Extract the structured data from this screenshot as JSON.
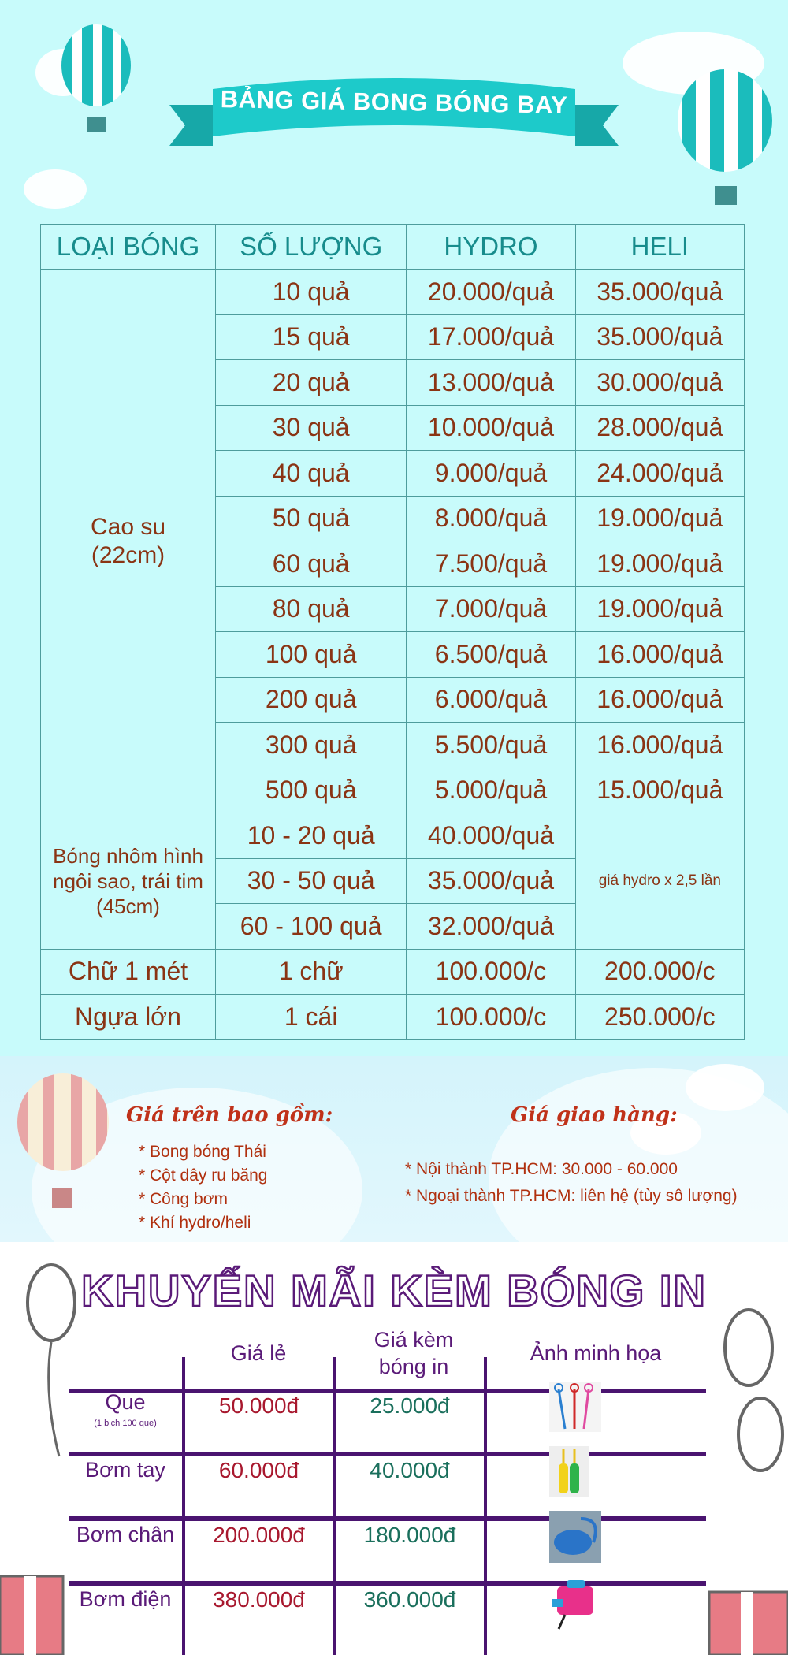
{
  "title": "BẢNG GIÁ BONG BÓNG BAY",
  "table": {
    "headers": [
      "LOẠI BÓNG",
      "SỐ LƯỢNG",
      "HYDRO",
      "HELI"
    ],
    "latex": {
      "type": "Cao su (22cm)",
      "rows": [
        [
          "10 quả",
          "20.000/quả",
          "35.000/quả"
        ],
        [
          "15 quả",
          "17.000/quả",
          "35.000/quả"
        ],
        [
          "20 quả",
          "13.000/quả",
          "30.000/quả"
        ],
        [
          "30 quả",
          "10.000/quả",
          "28.000/quả"
        ],
        [
          "40 quả",
          "9.000/quả",
          "24.000/quả"
        ],
        [
          "50 quả",
          "8.000/quả",
          "19.000/quả"
        ],
        [
          "60 quả",
          "7.500/quả",
          "19.000/quả"
        ],
        [
          "80 quả",
          "7.000/quả",
          "19.000/quả"
        ],
        [
          "100 quả",
          "6.500/quả",
          "16.000/quả"
        ],
        [
          "200 quả",
          "6.000/quả",
          "16.000/quả"
        ],
        [
          "300 quả",
          "5.500/quả",
          "16.000/quả"
        ],
        [
          "500 quả",
          "5.000/quả",
          "15.000/quả"
        ]
      ]
    },
    "foil": {
      "type": "Bóng nhôm hình ngôi sao, trái tim (45cm)",
      "heli": "giá hydro x 2,5 lần",
      "rows": [
        [
          "10 - 20 quả",
          "40.000/quả"
        ],
        [
          "30 - 50 quả",
          "35.000/quả"
        ],
        [
          "60 - 100 quả",
          "32.000/quả"
        ]
      ]
    },
    "others": [
      [
        "Chữ 1 mét",
        "1 chữ",
        "100.000/c",
        "200.000/c"
      ],
      [
        "Ngựa lớn",
        "1 cái",
        "100.000/c",
        "250.000/c"
      ]
    ]
  },
  "includes": {
    "heading": "Giá trên bao gồm:",
    "items": [
      "* Bong bóng Thái",
      "* Cột dây ru băng",
      "* Công bơm",
      "* Khí hydro/heli"
    ]
  },
  "delivery": {
    "heading": "Giá giao hàng:",
    "items": [
      "* Nội thành TP.HCM: 30.000 - 60.000",
      "* Ngoại thành TP.HCM: liên hệ (tùy sô lượng)"
    ]
  },
  "promo": {
    "title": "KHUYẾN MÃI KÈM BÓNG IN",
    "headers": [
      "Giá lẻ",
      "Giá kèm bóng in",
      "Ảnh minh họa"
    ],
    "rows": [
      {
        "name": "Que",
        "note": "(1 bịch 100 que)",
        "retail": "50.000đ",
        "combo": "25.000đ",
        "image": "balloon-sticks"
      },
      {
        "name": "Bơm tay",
        "note": "",
        "retail": "60.000đ",
        "combo": "40.000đ",
        "image": "hand-pump"
      },
      {
        "name": "Bơm chân",
        "note": "",
        "retail": "200.000đ",
        "combo": "180.000đ",
        "image": "foot-pump"
      },
      {
        "name": "Bơm điện",
        "note": "",
        "retail": "380.000đ",
        "combo": "360.000đ",
        "image": "electric-pump"
      }
    ]
  },
  "colors": {
    "sky": "#c8fbfb",
    "teal": "#1bc4c4",
    "brown": "#8a3414",
    "purple": "#5a1a78",
    "red": "#a8182e",
    "green": "#1a6f5c"
  }
}
